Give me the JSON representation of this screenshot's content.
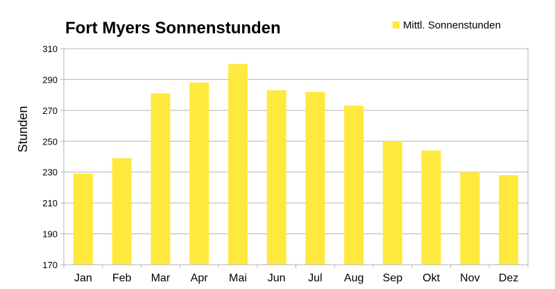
{
  "chart_data": {
    "type": "bar",
    "title": "Fort Myers Sonnenstunden",
    "xlabel": "",
    "ylabel": "Stunden",
    "categories": [
      "Jan",
      "Feb",
      "Mar",
      "Apr",
      "Mai",
      "Jun",
      "Jul",
      "Aug",
      "Sep",
      "Okt",
      "Nov",
      "Dez"
    ],
    "series": [
      {
        "name": "Mittl. Sonnenstunden",
        "values": [
          229,
          239,
          281,
          288,
          300,
          283,
          282,
          273,
          250,
          244,
          230,
          228
        ]
      }
    ],
    "ylim": [
      170,
      310
    ],
    "yticks": [
      170,
      190,
      210,
      230,
      250,
      270,
      290,
      310
    ],
    "grid": true,
    "legend": "top-right",
    "colors": {
      "bar": "#ffe93e",
      "grid": "#b3b3b3",
      "axis": "#b3b3b3"
    }
  }
}
